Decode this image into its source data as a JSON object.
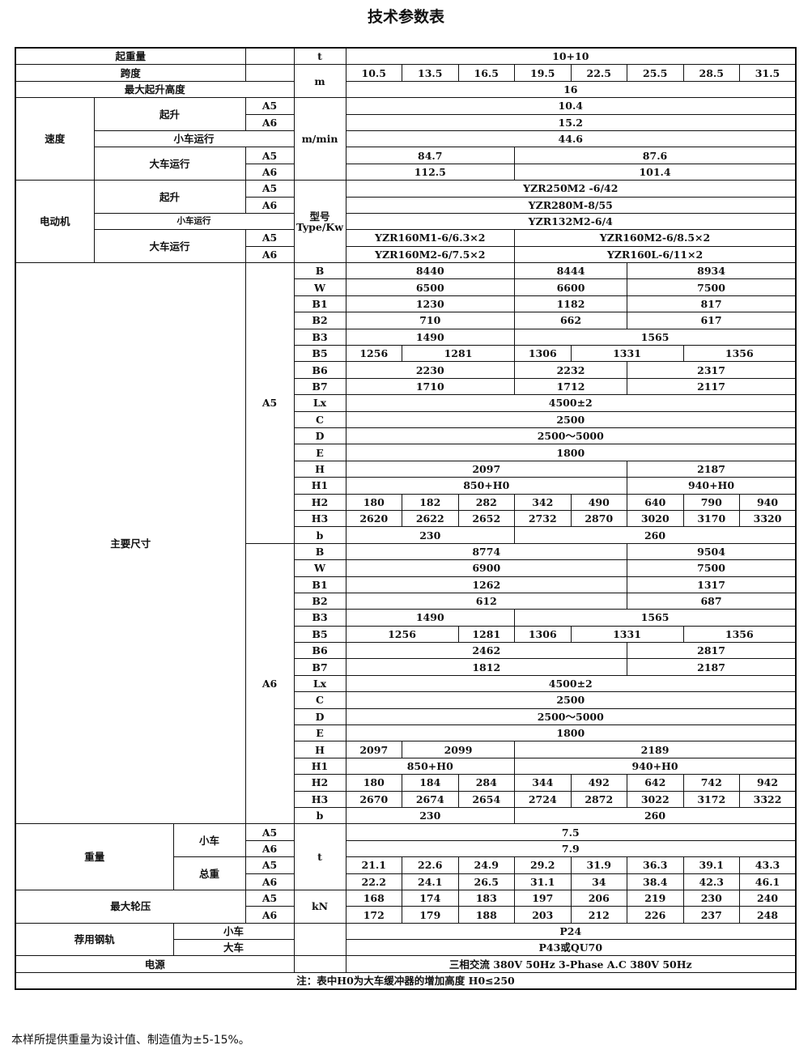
{
  "title": "技术参数表",
  "capacity": {
    "label": "起重量",
    "unit": "t",
    "value": "10+10"
  },
  "span": {
    "label": "跨度",
    "unit": "m",
    "values": [
      "10.5",
      "13.5",
      "16.5",
      "19.5",
      "22.5",
      "25.5",
      "28.5",
      "31.5"
    ]
  },
  "lift_height": {
    "label": "最大起升高度",
    "value": "16"
  },
  "speed": {
    "label": "速度",
    "unit": "m/min",
    "hoist": {
      "label": "起升",
      "grades": [
        "A5",
        "A6"
      ],
      "values": [
        "10.4",
        "15.2"
      ]
    },
    "trolley": {
      "label": "小车运行",
      "value": "44.6"
    },
    "crane": {
      "label": "大车运行",
      "grades": [
        "A5",
        "A6"
      ],
      "values": [
        [
          "84.7",
          "87.6"
        ],
        [
          "112.5",
          "101.4"
        ]
      ]
    }
  },
  "motor": {
    "label": "电动机",
    "unit_cn": "型号",
    "unit_en": "Type/Kw",
    "hoist": {
      "label": "起升",
      "grades": [
        "A5",
        "A6"
      ],
      "values": [
        "YZR250M2 -6/42",
        "YZR280M-8/55"
      ]
    },
    "trolley": {
      "label": "小车运行",
      "value": "YZR132M2-6/4"
    },
    "crane": {
      "label": "大车运行",
      "grades": [
        "A5",
        "A6"
      ],
      "values": [
        [
          "YZR160M1-6/6.3×2",
          "YZR160M2-6/8.5×2"
        ],
        [
          "YZR160M2-6/7.5×2",
          "YZR160L-6/11×2"
        ]
      ]
    }
  },
  "dims": {
    "label": "主要尺寸",
    "A5": {
      "grade": "A5",
      "rows": [
        {
          "name": "B",
          "values": [
            "8440",
            "8444",
            "8934"
          ]
        },
        {
          "name": "W",
          "values": [
            "6500",
            "6600",
            "7500"
          ]
        },
        {
          "name": "B1",
          "values": [
            "1230",
            "1182",
            "817"
          ]
        },
        {
          "name": "B2",
          "values": [
            "710",
            "662",
            "617"
          ]
        },
        {
          "name": "B3",
          "values": [
            "1490",
            "1565"
          ]
        },
        {
          "name": "B5",
          "values": [
            "1256",
            "1281",
            "1306",
            "1331",
            "1356"
          ]
        },
        {
          "name": "B6",
          "values": [
            "2230",
            "2232",
            "2317"
          ]
        },
        {
          "name": "B7",
          "values": [
            "1710",
            "1712",
            "2117"
          ]
        },
        {
          "name": "Lx",
          "values": [
            "4500±2"
          ]
        },
        {
          "name": "C",
          "values": [
            "2500"
          ]
        },
        {
          "name": "D",
          "values": [
            "2500～5000"
          ]
        },
        {
          "name": "E",
          "values": [
            "1800"
          ]
        },
        {
          "name": "H",
          "values": [
            "2097",
            "2187"
          ]
        },
        {
          "name": "H1",
          "values": [
            "850+H0",
            "940+H0"
          ]
        },
        {
          "name": "H2",
          "values": [
            "180",
            "182",
            "282",
            "342",
            "490",
            "640",
            "790",
            "940"
          ]
        },
        {
          "name": "H3",
          "values": [
            "2620",
            "2622",
            "2652",
            "2732",
            "2870",
            "3020",
            "3170",
            "3320"
          ]
        },
        {
          "name": "b",
          "values": [
            "230",
            "260"
          ]
        }
      ]
    },
    "A6": {
      "grade": "A6",
      "rows": [
        {
          "name": "B",
          "values": [
            "8774",
            "9504"
          ]
        },
        {
          "name": "W",
          "values": [
            "6900",
            "7500"
          ]
        },
        {
          "name": "B1",
          "values": [
            "1262",
            "1317"
          ]
        },
        {
          "name": "B2",
          "values": [
            "612",
            "687"
          ]
        },
        {
          "name": "B3",
          "values": [
            "1490",
            "1565"
          ]
        },
        {
          "name": "B5",
          "values": [
            "1256",
            "1281",
            "1306",
            "1331",
            "1356"
          ]
        },
        {
          "name": "B6",
          "values": [
            "2462",
            "2817"
          ]
        },
        {
          "name": "B7",
          "values": [
            "1812",
            "2187"
          ]
        },
        {
          "name": "Lx",
          "values": [
            "4500±2"
          ]
        },
        {
          "name": "C",
          "values": [
            "2500"
          ]
        },
        {
          "name": "D",
          "values": [
            "2500～5000"
          ]
        },
        {
          "name": "E",
          "values": [
            "1800"
          ]
        },
        {
          "name": "H",
          "values": [
            "2097",
            "2099",
            "2189"
          ]
        },
        {
          "name": "H1",
          "values": [
            "850+H0",
            "940+H0"
          ]
        },
        {
          "name": "H2",
          "values": [
            "180",
            "184",
            "284",
            "344",
            "492",
            "642",
            "742",
            "942"
          ]
        },
        {
          "name": "H3",
          "values": [
            "2670",
            "2674",
            "2654",
            "2724",
            "2872",
            "3022",
            "3172",
            "3322"
          ]
        },
        {
          "name": "b",
          "values": [
            "230",
            "260"
          ]
        }
      ]
    }
  },
  "weight": {
    "label": "重量",
    "unit": "t",
    "trolley": {
      "label": "小车",
      "grades": [
        "A5",
        "A6"
      ],
      "values": [
        "7.5",
        "7.9"
      ]
    },
    "total": {
      "label": "总重",
      "grades": [
        "A5",
        "A6"
      ],
      "values": [
        [
          "21.1",
          "22.6",
          "24.9",
          "29.2",
          "31.9",
          "36.3",
          "39.1",
          "43.3"
        ],
        [
          "22.2",
          "24.1",
          "26.5",
          "31.1",
          "34",
          "38.4",
          "42.3",
          "46.1"
        ]
      ]
    }
  },
  "wheel_load": {
    "label": "最大轮压",
    "unit": "kN",
    "grades": [
      "A5",
      "A6"
    ],
    "values": [
      [
        "168",
        "174",
        "183",
        "197",
        "206",
        "219",
        "230",
        "240"
      ],
      [
        "172",
        "179",
        "188",
        "203",
        "212",
        "226",
        "237",
        "248"
      ]
    ]
  },
  "rail": {
    "label": "荐用钢轨",
    "trolley": {
      "label": "小车",
      "value": "P24"
    },
    "crane": {
      "label": "大车",
      "value": "P43或QU70"
    }
  },
  "power": {
    "label": "电源",
    "value": "三相交流 380V 50Hz 3-Phase A.C 380V 50Hz"
  },
  "note": "注：表中H0为大车缓冲器的增加高度  H0≤250",
  "footer": "本样所提供重量为设计值、制造值为±5-15%。"
}
